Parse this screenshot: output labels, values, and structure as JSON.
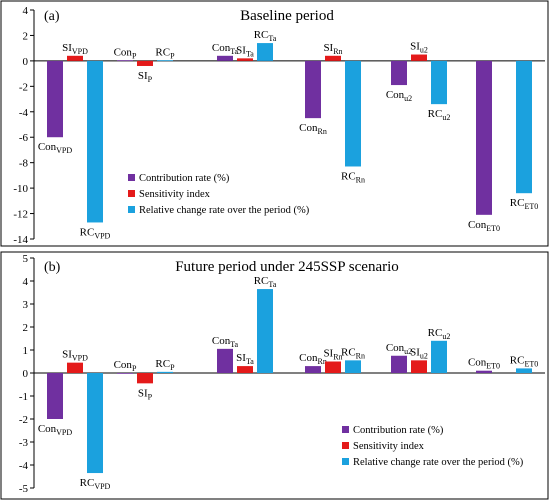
{
  "colors": {
    "contribution": "#7030A0",
    "sensitivity": "#E41A1A",
    "relative_change": "#1BA1DE"
  },
  "chart_data": [
    {
      "type": "bar",
      "panel_label": "(a)",
      "title": "Baseline period",
      "ylim": [
        -14,
        4
      ],
      "yticks": [
        4,
        2,
        0,
        -2,
        -4,
        -6,
        -8,
        -10,
        -12,
        -14
      ],
      "legend_position": "bottom-right",
      "series": [
        {
          "name": "Contribution rate (%)",
          "key": "contribution"
        },
        {
          "name": "Sensitivity index",
          "key": "sensitivity"
        },
        {
          "name": "Relative change rate over the period (%)",
          "key": "relative_change"
        }
      ],
      "bars": [
        {
          "series": "contribution",
          "group": 0,
          "value": -6.0,
          "label": "Con",
          "sub": "VPD"
        },
        {
          "series": "sensitivity",
          "group": 0,
          "value": 0.4,
          "label": "SI",
          "sub": "VPD"
        },
        {
          "series": "relative_change",
          "group": 0,
          "value": -12.7,
          "label": "RC",
          "sub": "VPD"
        },
        {
          "series": "contribution",
          "group": 1,
          "value": 0.05,
          "label": "Con",
          "sub": "P"
        },
        {
          "series": "sensitivity",
          "group": 1,
          "value": -0.4,
          "label": "SI",
          "sub": "P"
        },
        {
          "series": "relative_change",
          "group": 1,
          "value": 0.05,
          "label": "RC",
          "sub": "P"
        },
        {
          "series": "contribution",
          "group": 2,
          "value": 0.4,
          "label": "Con",
          "sub": "Ta"
        },
        {
          "series": "sensitivity",
          "group": 2,
          "value": 0.2,
          "label": "SI",
          "sub": "Ta"
        },
        {
          "series": "relative_change",
          "group": 2,
          "value": 1.4,
          "label": "RC",
          "sub": "Ta"
        },
        {
          "series": "contribution",
          "group": 3,
          "value": -4.5,
          "label": "Con",
          "sub": "Rn"
        },
        {
          "series": "sensitivity",
          "group": 3,
          "value": 0.4,
          "label": "SI",
          "sub": "Rn"
        },
        {
          "series": "relative_change",
          "group": 3,
          "value": -8.3,
          "label": "RC",
          "sub": "Rn"
        },
        {
          "series": "contribution",
          "group": 4,
          "value": -1.9,
          "label": "Con",
          "sub": "u2"
        },
        {
          "series": "sensitivity",
          "group": 4,
          "value": 0.5,
          "label": "SI",
          "sub": "u2"
        },
        {
          "series": "relative_change",
          "group": 4,
          "value": -3.4,
          "label": "RC",
          "sub": "u2"
        },
        {
          "series": "contribution",
          "group": 5,
          "value": -12.1,
          "label": "Con",
          "sub": "ET0"
        },
        {
          "series": "relative_change",
          "group": 5,
          "value": -10.4,
          "label": "RC",
          "sub": "ET0"
        }
      ]
    },
    {
      "type": "bar",
      "panel_label": "(b)",
      "title": "Future period under 245SSP scenario",
      "ylim": [
        -5,
        5
      ],
      "yticks": [
        5,
        4,
        3,
        2,
        1,
        0,
        -1,
        -2,
        -3,
        -4,
        -5
      ],
      "legend_position": "bottom-right",
      "series": [
        {
          "name": "Contribution rate (%)",
          "key": "contribution"
        },
        {
          "name": "Sensitivity index",
          "key": "sensitivity"
        },
        {
          "name": "Relative change rate over the period (%)",
          "key": "relative_change"
        }
      ],
      "bars": [
        {
          "series": "contribution",
          "group": 0,
          "value": -2.0,
          "label": "Con",
          "sub": "VPD"
        },
        {
          "series": "sensitivity",
          "group": 0,
          "value": 0.45,
          "label": "SI",
          "sub": "VPD"
        },
        {
          "series": "relative_change",
          "group": 0,
          "value": -4.35,
          "label": "RC",
          "sub": "VPD"
        },
        {
          "series": "contribution",
          "group": 1,
          "value": 0.0,
          "label": "Con",
          "sub": "P"
        },
        {
          "series": "sensitivity",
          "group": 1,
          "value": -0.45,
          "label": "SI",
          "sub": "P"
        },
        {
          "series": "relative_change",
          "group": 1,
          "value": 0.05,
          "label": "RC",
          "sub": "P"
        },
        {
          "series": "contribution",
          "group": 2,
          "value": 1.05,
          "label": "Con",
          "sub": "Ta"
        },
        {
          "series": "sensitivity",
          "group": 2,
          "value": 0.3,
          "label": "SI",
          "sub": "Ta"
        },
        {
          "series": "relative_change",
          "group": 2,
          "value": 3.65,
          "label": "RC",
          "sub": "Ta"
        },
        {
          "series": "contribution",
          "group": 3,
          "value": 0.3,
          "label": "Con",
          "sub": "Rn"
        },
        {
          "series": "sensitivity",
          "group": 3,
          "value": 0.5,
          "label": "SI",
          "sub": "Rn"
        },
        {
          "series": "relative_change",
          "group": 3,
          "value": 0.55,
          "label": "RC",
          "sub": "Rn"
        },
        {
          "series": "contribution",
          "group": 4,
          "value": 0.75,
          "label": "Con",
          "sub": "u2"
        },
        {
          "series": "sensitivity",
          "group": 4,
          "value": 0.55,
          "label": "SI",
          "sub": "u2"
        },
        {
          "series": "relative_change",
          "group": 4,
          "value": 1.4,
          "label": "RC",
          "sub": "u2"
        },
        {
          "series": "contribution",
          "group": 5,
          "value": 0.1,
          "label": "Con",
          "sub": "ET0"
        },
        {
          "series": "relative_change",
          "group": 5,
          "value": 0.2,
          "label": "RC",
          "sub": "ET0"
        }
      ]
    }
  ]
}
